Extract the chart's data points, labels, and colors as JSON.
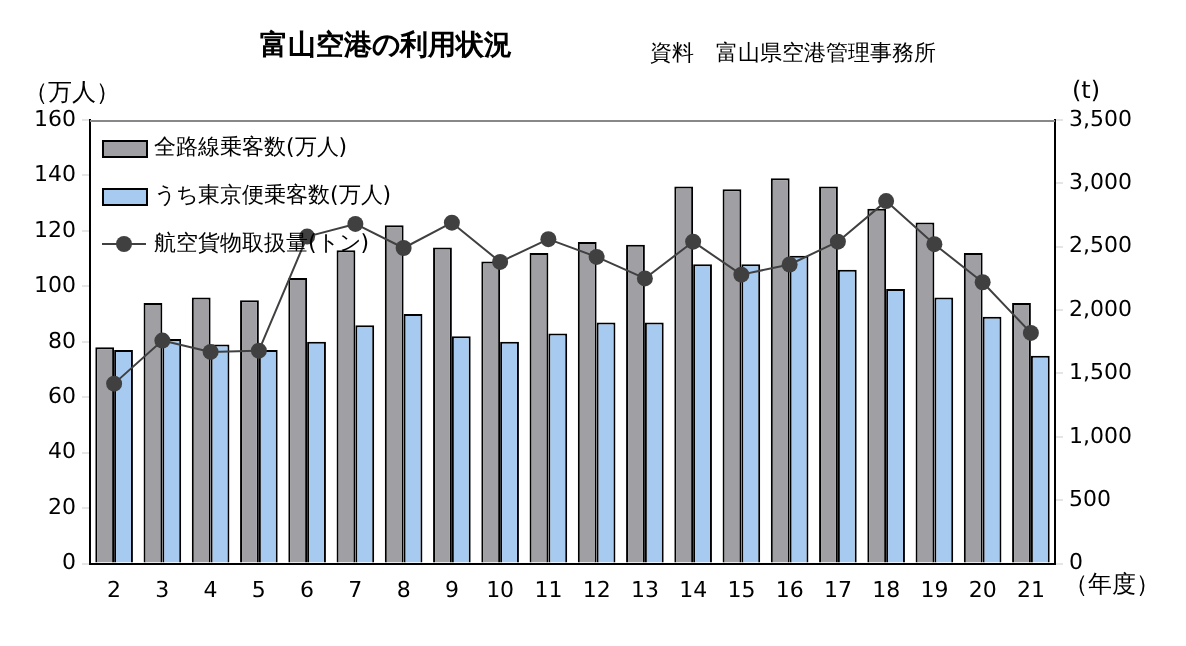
{
  "chart_data": {
    "type": "bar",
    "title": "富山空港の利用状況",
    "annotations": [
      "資料　富山県空港管理事務所"
    ],
    "ylabel": "（万人）",
    "y2label": "(t)",
    "xlabel": "（年度）",
    "categories": [
      "2",
      "3",
      "4",
      "5",
      "6",
      "7",
      "8",
      "9",
      "10",
      "11",
      "12",
      "13",
      "14",
      "15",
      "16",
      "17",
      "18",
      "19",
      "20",
      "21"
    ],
    "series": [
      {
        "name": "全路線乗客数(万人)",
        "color": "#a09fa4",
        "values": [
          78,
          94,
          96,
          95,
          103,
          113,
          122,
          114,
          109,
          112,
          116,
          115,
          136,
          135,
          139,
          136,
          128,
          123,
          112,
          94
        ]
      },
      {
        "name": "うち東京便乗客数(万人)",
        "color": "#a6caf0",
        "values": [
          77,
          81,
          79,
          77,
          80,
          86,
          90,
          82,
          80,
          83,
          87,
          87,
          108,
          108,
          111,
          106,
          99,
          96,
          89,
          75
        ]
      },
      {
        "name": "航空貨物取扱量(トン)",
        "type": "line",
        "axis": "y2",
        "color": "#404040",
        "values": [
          1420,
          1760,
          1670,
          1680,
          2580,
          2680,
          2490,
          2690,
          2380,
          2560,
          2420,
          2250,
          2540,
          2280,
          2360,
          2540,
          2860,
          2520,
          2220,
          1820
        ]
      }
    ],
    "ylim": [
      0,
      160
    ],
    "yticks": [
      0,
      20,
      40,
      60,
      80,
      100,
      120,
      140,
      160
    ],
    "y2lim": [
      0,
      3500
    ],
    "y2ticks": [
      {
        "value": 0,
        "label": "0"
      },
      {
        "value": 500,
        "label": "500"
      },
      {
        "value": 1000,
        "label": "1,000"
      },
      {
        "value": 1500,
        "label": "1,500"
      },
      {
        "value": 2000,
        "label": "2,000"
      },
      {
        "value": 2500,
        "label": "2,500"
      },
      {
        "value": 3000,
        "label": "3,000"
      },
      {
        "value": 3500,
        "label": "3,500"
      }
    ],
    "grid": false,
    "legend": "top left",
    "marker": "circle",
    "line_style": "solid"
  }
}
